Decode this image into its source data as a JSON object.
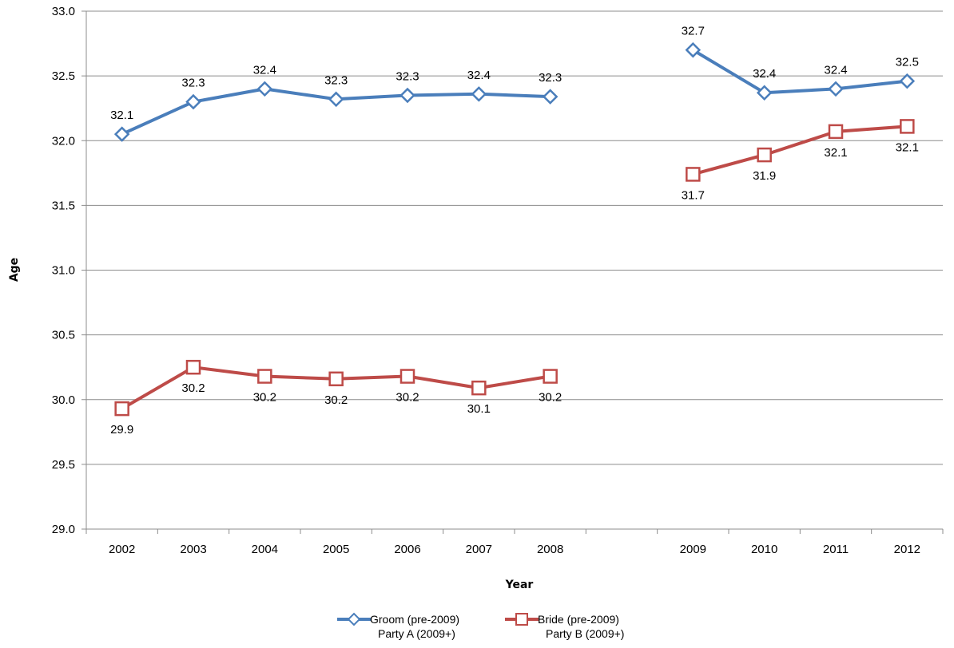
{
  "chart_data": {
    "type": "line",
    "title": "",
    "xlabel": "Year",
    "ylabel": "Age",
    "ylim": [
      29.0,
      33.0
    ],
    "ytick_step": 0.5,
    "ytick_labels": [
      "29.0",
      "29.5",
      "30.0",
      "30.5",
      "31.0",
      "31.5",
      "32.0",
      "32.5",
      "33.0"
    ],
    "categories": [
      "2002",
      "2003",
      "2004",
      "2005",
      "2006",
      "2007",
      "2008",
      "",
      "2009",
      "2010",
      "2011",
      "2012"
    ],
    "grid": "horizontal",
    "legend_position": "bottom",
    "series": [
      {
        "name": "Groom (pre-2009)",
        "name_line2": "Party A (2009+)",
        "color": "#4a7ebb",
        "marker": "diamond",
        "label_position": "above",
        "values": [
          32.05,
          32.3,
          32.4,
          32.32,
          32.35,
          32.36,
          32.34,
          null,
          32.7,
          32.37,
          32.4,
          32.46
        ],
        "labels": [
          "32.1",
          "32.3",
          "32.4",
          "32.3",
          "32.3",
          "32.4",
          "32.3",
          "",
          "32.7",
          "32.4",
          "32.4",
          "32.5"
        ]
      },
      {
        "name": "Bride (pre-2009)",
        "name_line2": "Party B (2009+)",
        "color": "#be4b48",
        "marker": "square",
        "label_position": "below",
        "values": [
          29.93,
          30.25,
          30.18,
          30.16,
          30.18,
          30.09,
          30.18,
          null,
          31.74,
          31.89,
          32.07,
          32.11
        ],
        "labels": [
          "29.9",
          "30.2",
          "30.2",
          "30.2",
          "30.2",
          "30.1",
          "30.2",
          "",
          "31.7",
          "31.9",
          "32.1",
          "32.1"
        ]
      }
    ]
  }
}
